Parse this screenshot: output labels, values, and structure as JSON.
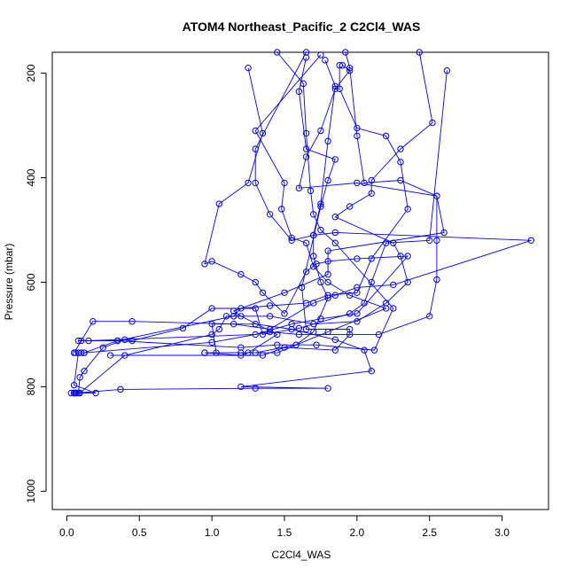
{
  "chart_data": {
    "type": "line",
    "title": "ATOM4 Northeast_Pacific_2 C2Cl4_WAS",
    "xlabel": "C2Cl4_WAS",
    "ylabel": "Pressure (mbar)",
    "xlim": [
      -0.1,
      3.32
    ],
    "ylim": [
      1035,
      160
    ],
    "y_reversed": true,
    "grid": false,
    "legend": "none",
    "colors": {
      "series": "#0000ff",
      "axis": "#000000"
    },
    "x_ticks": [
      {
        "value": 0.0,
        "label": "0.0"
      },
      {
        "value": 0.5,
        "label": "0.5"
      },
      {
        "value": 1.0,
        "label": "1.0"
      },
      {
        "value": 1.5,
        "label": "1.5"
      },
      {
        "value": 2.0,
        "label": "2.0"
      },
      {
        "value": 2.5,
        "label": "2.5"
      },
      {
        "value": 3.0,
        "label": "3.0"
      }
    ],
    "y_ticks": [
      {
        "value": 200,
        "label": "200"
      },
      {
        "value": 400,
        "label": "400"
      },
      {
        "value": 600,
        "label": "600"
      },
      {
        "value": 800,
        "label": "800"
      },
      {
        "value": 1000,
        "label": "1000"
      }
    ],
    "series": [
      {
        "points": [
          [
            0.03,
            812
          ],
          [
            0.05,
            812
          ],
          [
            0.08,
            812
          ],
          [
            0.09,
            782
          ],
          [
            0.12,
            770
          ],
          [
            0.25,
            725
          ],
          [
            0.4,
            710
          ],
          [
            0.45,
            712
          ],
          [
            0.8,
            688
          ],
          [
            1.0,
            650
          ],
          [
            1.3,
            650
          ],
          [
            1.35,
            700
          ],
          [
            1.6,
            688
          ],
          [
            1.95,
            660
          ],
          [
            2.05,
            640
          ],
          [
            2.1,
            600
          ],
          [
            2.2,
            525
          ],
          [
            2.5,
            520
          ],
          [
            2.62,
            195
          ]
        ]
      },
      {
        "points": [
          [
            0.06,
            812
          ],
          [
            0.2,
            812
          ],
          [
            0.05,
            797
          ],
          [
            0.08,
            735
          ],
          [
            0.1,
            735
          ],
          [
            0.12,
            735
          ],
          [
            0.35,
            712
          ],
          [
            1.15,
            665
          ],
          [
            1.2,
            650
          ],
          [
            1.4,
            645
          ],
          [
            1.65,
            640
          ],
          [
            1.8,
            625
          ],
          [
            2.0,
            620
          ],
          [
            2.1,
            555
          ],
          [
            2.35,
            460
          ],
          [
            2.3,
            370
          ],
          [
            2.2,
            320
          ],
          [
            2.0,
            305
          ],
          [
            1.88,
            230
          ],
          [
            1.88,
            185
          ]
        ]
      },
      {
        "points": [
          [
            0.06,
            812
          ],
          [
            0.09,
            812
          ],
          [
            0.4,
            740
          ],
          [
            1.0,
            700
          ],
          [
            1.05,
            690
          ],
          [
            1.1,
            665
          ],
          [
            1.15,
            665
          ],
          [
            1.4,
            665
          ],
          [
            1.7,
            680
          ],
          [
            2.0,
            675
          ],
          [
            2.2,
            640
          ],
          [
            2.35,
            600
          ],
          [
            2.3,
            550
          ],
          [
            2.25,
            525
          ],
          [
            1.85,
            475
          ],
          [
            1.95,
            455
          ],
          [
            2.1,
            430
          ],
          [
            2.1,
            405
          ],
          [
            2.3,
            345
          ],
          [
            2.52,
            295
          ],
          [
            2.43,
            160
          ]
        ]
      },
      {
        "points": [
          [
            0.05,
            812
          ],
          [
            0.07,
            812
          ],
          [
            0.37,
            805
          ],
          [
            1.3,
            803
          ],
          [
            1.8,
            803
          ],
          [
            1.2,
            800
          ],
          [
            2.1,
            770
          ],
          [
            2.05,
            730
          ],
          [
            1.85,
            710
          ],
          [
            1.55,
            690
          ],
          [
            1.3,
            680
          ],
          [
            1.0,
            680
          ],
          [
            1.03,
            735
          ],
          [
            1.2,
            735
          ],
          [
            1.45,
            735
          ],
          [
            1.8,
            695
          ],
          [
            2.2,
            650
          ],
          [
            1.95,
            625
          ],
          [
            1.8,
            600
          ],
          [
            1.7,
            570
          ],
          [
            1.65,
            525
          ],
          [
            1.55,
            515
          ],
          [
            1.48,
            460
          ],
          [
            1.5,
            410
          ],
          [
            1.3,
            310
          ],
          [
            1.75,
            165
          ]
        ]
      },
      {
        "points": [
          [
            0.06,
            735
          ],
          [
            0.12,
            735
          ],
          [
            1.0,
            715
          ],
          [
            1.4,
            695
          ],
          [
            1.6,
            700
          ],
          [
            2.15,
            700
          ],
          [
            2.5,
            665
          ],
          [
            2.55,
            595
          ],
          [
            2.55,
            520
          ],
          [
            2.55,
            435
          ],
          [
            2.3,
            405
          ],
          [
            2.05,
            410
          ],
          [
            2.0,
            320
          ],
          [
            1.95,
            190
          ],
          [
            1.92,
            160
          ]
        ]
      },
      {
        "points": [
          [
            0.08,
            712
          ],
          [
            0.35,
            712
          ],
          [
            1.2,
            725
          ],
          [
            1.45,
            720
          ],
          [
            1.72,
            720
          ],
          [
            2.12,
            730
          ],
          [
            2.25,
            650
          ],
          [
            1.85,
            525
          ],
          [
            1.75,
            500
          ],
          [
            1.7,
            470
          ],
          [
            1.68,
            425
          ],
          [
            1.65,
            315
          ],
          [
            1.63,
            220
          ],
          [
            1.45,
            160
          ]
        ]
      },
      {
        "points": [
          [
            0.1,
            712
          ],
          [
            0.15,
            712
          ],
          [
            1.3,
            700
          ],
          [
            1.55,
            680
          ],
          [
            1.75,
            670
          ],
          [
            2.0,
            660
          ],
          [
            2.35,
            550
          ],
          [
            2.0,
            555
          ],
          [
            1.8,
            560
          ],
          [
            1.72,
            565
          ],
          [
            1.65,
            580
          ],
          [
            1.5,
            660
          ],
          [
            1.35,
            620
          ],
          [
            1.3,
            600
          ],
          [
            1.2,
            585
          ],
          [
            1.0,
            560
          ],
          [
            0.95,
            565
          ],
          [
            1.05,
            450
          ],
          [
            1.25,
            410
          ],
          [
            1.35,
            315
          ],
          [
            1.25,
            190
          ]
        ]
      },
      {
        "points": [
          [
            0.05,
            735
          ],
          [
            0.18,
            675
          ],
          [
            0.45,
            675
          ],
          [
            1.15,
            680
          ],
          [
            1.4,
            690
          ],
          [
            1.7,
            640
          ],
          [
            1.85,
            625
          ],
          [
            2.0,
            610
          ],
          [
            2.25,
            605
          ],
          [
            3.2,
            520
          ],
          [
            1.85,
            505
          ],
          [
            1.7,
            510
          ],
          [
            1.55,
            520
          ],
          [
            1.4,
            470
          ],
          [
            1.3,
            410
          ],
          [
            1.3,
            345
          ],
          [
            1.65,
            160
          ]
        ]
      },
      {
        "points": [
          [
            0.95,
            735
          ],
          [
            1.2,
            740
          ],
          [
            1.25,
            735
          ],
          [
            1.45,
            700
          ],
          [
            1.2,
            665
          ],
          [
            1.15,
            655
          ],
          [
            1.5,
            620
          ],
          [
            1.8,
            585
          ],
          [
            1.8,
            540
          ],
          [
            2.6,
            505
          ],
          [
            2.55,
            435
          ],
          [
            2.0,
            410
          ],
          [
            1.6,
            420
          ],
          [
            1.65,
            360
          ],
          [
            1.75,
            310
          ],
          [
            1.85,
            230
          ],
          [
            1.95,
            195
          ],
          [
            1.9,
            185
          ]
        ]
      },
      {
        "points": [
          [
            0.3,
            740
          ],
          [
            1.35,
            740
          ],
          [
            1.5,
            725
          ],
          [
            1.85,
            730
          ],
          [
            1.95,
            700
          ],
          [
            1.95,
            690
          ],
          [
            1.65,
            690
          ],
          [
            1.62,
            610
          ],
          [
            1.75,
            455
          ],
          [
            1.8,
            405
          ],
          [
            1.85,
            365
          ],
          [
            1.65,
            345
          ],
          [
            1.6,
            235
          ],
          [
            1.65,
            170
          ]
        ]
      },
      {
        "points": [
          [
            0.95,
            735
          ],
          [
            1.3,
            735
          ],
          [
            1.58,
            720
          ],
          [
            1.7,
            695
          ],
          [
            1.8,
            630
          ],
          [
            1.75,
            600
          ],
          [
            1.7,
            550
          ],
          [
            1.7,
            510
          ],
          [
            1.75,
            450
          ],
          [
            1.8,
            330
          ],
          [
            1.85,
            225
          ],
          [
            1.78,
            175
          ]
        ]
      }
    ]
  }
}
